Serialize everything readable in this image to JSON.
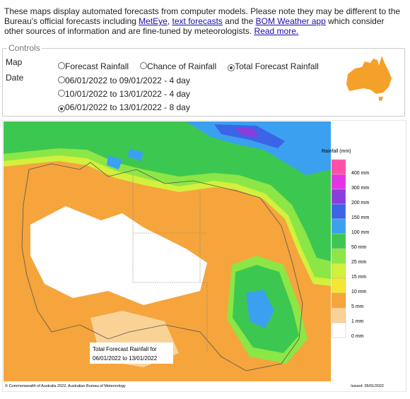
{
  "intro": {
    "parts": [
      {
        "text": "These maps display automated forecasts from computer models. Please note they may be different to the Bureau's official forecasts including "
      },
      {
        "text": "MetEye",
        "link": true
      },
      {
        "text": ", "
      },
      {
        "text": "text forecasts",
        "link": true
      },
      {
        "text": " and the "
      },
      {
        "text": "BOM Weather app",
        "link": true
      },
      {
        "text": " which consider other sources of information and are fine-tuned by meteorologists. "
      },
      {
        "text": "Read more.",
        "link": true
      }
    ]
  },
  "controls": {
    "legend": "Controls",
    "map_label": "Map",
    "map_options": [
      {
        "label": "Forecast Rainfall",
        "selected": false
      },
      {
        "label": "Chance of Rainfall",
        "selected": false
      },
      {
        "label": "Total Forecast Rainfall",
        "selected": true
      }
    ],
    "date_label": "Date",
    "date_options": [
      {
        "label": "06/01/2022 to 09/01/2022 - 4 day",
        "selected": false
      },
      {
        "label": "10/01/2022 to 13/01/2022 - 4 day",
        "selected": false
      },
      {
        "label": "06/01/2022 to 13/01/2022 - 8 day",
        "selected": true
      }
    ]
  },
  "map": {
    "legend_title": "Rainfall (mm)",
    "legend": [
      {
        "label": "400 mm",
        "color": "#ff4fa8"
      },
      {
        "label": "300 mm",
        "color": "#e632e6"
      },
      {
        "label": "200 mm",
        "color": "#8c3cdc"
      },
      {
        "label": "150 mm",
        "color": "#3c64e6"
      },
      {
        "label": "100 mm",
        "color": "#3ca0f0"
      },
      {
        "label": "50 mm",
        "color": "#3cc850"
      },
      {
        "label": "25 mm",
        "color": "#8ce646"
      },
      {
        "label": "15 mm",
        "color": "#d2f03c"
      },
      {
        "label": "10 mm",
        "color": "#f5e632"
      },
      {
        "label": "5 mm",
        "color": "#f5a53c"
      },
      {
        "label": "1 mm",
        "color": "#fad296"
      },
      {
        "label": "0 mm",
        "color": "#ffffff"
      }
    ],
    "caption": [
      "Total Forecast Rainfall for",
      "06/01/2022 to 13/01/2022"
    ],
    "copyright": "© Commonwealth of Australia 2022, Australian Bureau of Meteorology",
    "issued": "Issued: 05/01/2022"
  }
}
